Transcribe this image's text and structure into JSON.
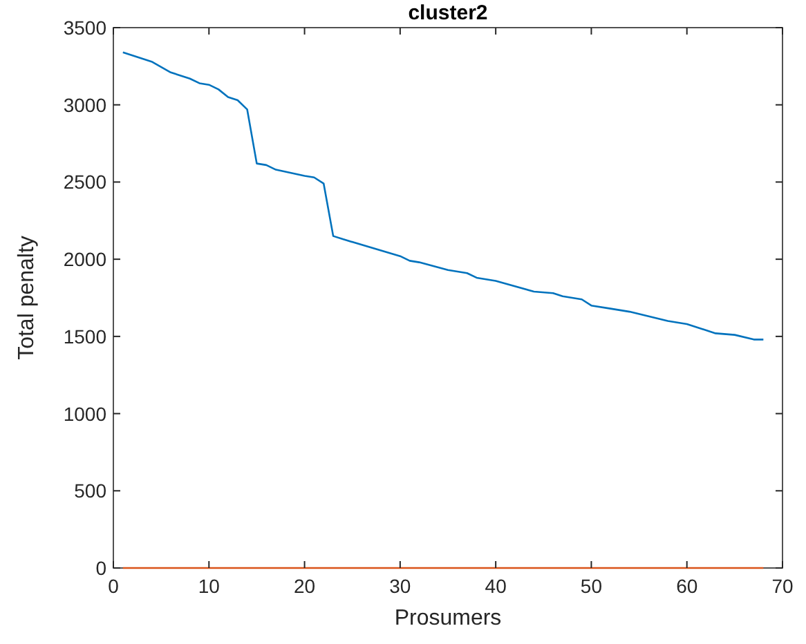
{
  "chart_data": {
    "type": "line",
    "title": "cluster2",
    "xlabel": "Prosumers",
    "ylabel": "Total penalty",
    "xlim": [
      0,
      70
    ],
    "ylim": [
      0,
      3500
    ],
    "xticks": [
      0,
      10,
      20,
      30,
      40,
      50,
      60,
      70
    ],
    "yticks": [
      0,
      500,
      1000,
      1500,
      2000,
      2500,
      3000,
      3500
    ],
    "grid": false,
    "series": [
      {
        "color": "#0072bd",
        "x": [
          1,
          4,
          6,
          8,
          9,
          10,
          11,
          12,
          13,
          14,
          15,
          16,
          17,
          20,
          21,
          22,
          23,
          24,
          30,
          31,
          32,
          35,
          37,
          38,
          40,
          44,
          46,
          47,
          49,
          50,
          52,
          54,
          58,
          60,
          63,
          65,
          67,
          68
        ],
        "values": [
          3340,
          3280,
          3210,
          3170,
          3140,
          3130,
          3100,
          3050,
          3030,
          2970,
          2620,
          2610,
          2580,
          2540,
          2530,
          2490,
          2150,
          2130,
          2020,
          1990,
          1980,
          1930,
          1910,
          1880,
          1860,
          1790,
          1780,
          1760,
          1740,
          1700,
          1680,
          1660,
          1600,
          1580,
          1520,
          1510,
          1480,
          1480
        ]
      },
      {
        "color": "#d95319",
        "x": [
          1,
          68
        ],
        "values": [
          0,
          0
        ]
      }
    ]
  }
}
